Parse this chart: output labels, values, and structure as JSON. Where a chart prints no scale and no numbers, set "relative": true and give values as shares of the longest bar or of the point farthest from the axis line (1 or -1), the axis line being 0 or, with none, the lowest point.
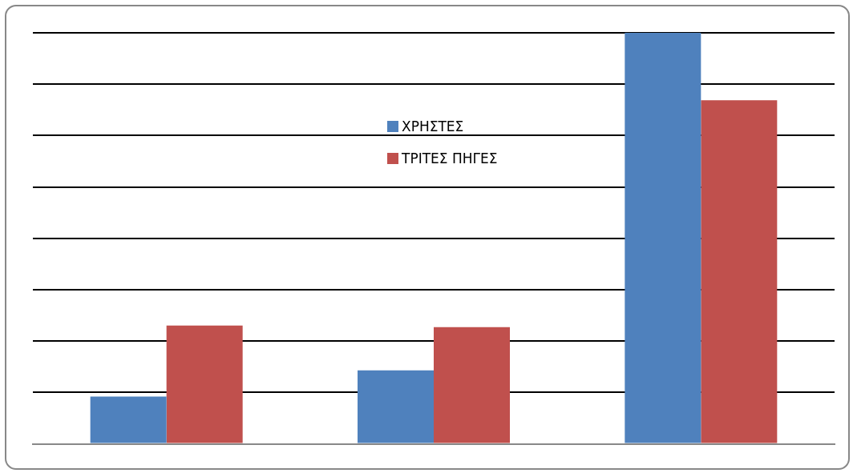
{
  "chart_data": {
    "type": "bar",
    "relative": true,
    "categories": [
      null,
      null,
      null
    ],
    "series": [
      {
        "name": "ΧΡΗΣΤΕΣ",
        "color": "#4f81bd",
        "values": [
          0.115,
          0.179,
          1
        ]
      },
      {
        "name": "ΤΡΙΤΕΣ ΠΗΓΕΣ",
        "color": "#c0504d",
        "values": [
          0.288,
          0.284,
          0.836
        ]
      }
    ],
    "grid": true,
    "legend": "top"
  }
}
